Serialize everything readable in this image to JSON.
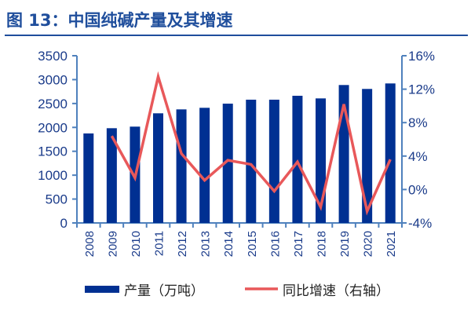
{
  "title": "图 13：中国纯碱产量及其增速",
  "chart_data": {
    "type": "bar+line",
    "categories": [
      "2008",
      "2009",
      "2010",
      "2011",
      "2012",
      "2013",
      "2014",
      "2015",
      "2016",
      "2017",
      "2018",
      "2019",
      "2020",
      "2021"
    ],
    "series": [
      {
        "name": "产量（万吨）",
        "type": "bar",
        "axis": "left",
        "color": "#003092",
        "values": [
          1873,
          1983,
          2016,
          2295,
          2377,
          2410,
          2497,
          2580,
          2580,
          2662,
          2607,
          2887,
          2805,
          2920
        ]
      },
      {
        "name": "同比增速（右轴）",
        "type": "line",
        "axis": "right",
        "color": "#e8585a",
        "values": [
          null,
          6.4,
          1.4,
          13.5,
          4.3,
          1.1,
          3.5,
          3.0,
          -0.2,
          3.3,
          -2.1,
          10.2,
          -2.6,
          3.6
        ]
      }
    ],
    "left_axis": {
      "ylim": [
        0,
        3500
      ],
      "ticks": [
        "0",
        "500",
        "1000",
        "1500",
        "2000",
        "2500",
        "3000",
        "3500"
      ]
    },
    "right_axis": {
      "ylim": [
        -4,
        16
      ],
      "ticks": [
        "-4%",
        "0%",
        "4%",
        "8%",
        "12%",
        "16%"
      ]
    },
    "axis_color": "#4f81bd",
    "grid": false,
    "legend_position": "bottom"
  }
}
